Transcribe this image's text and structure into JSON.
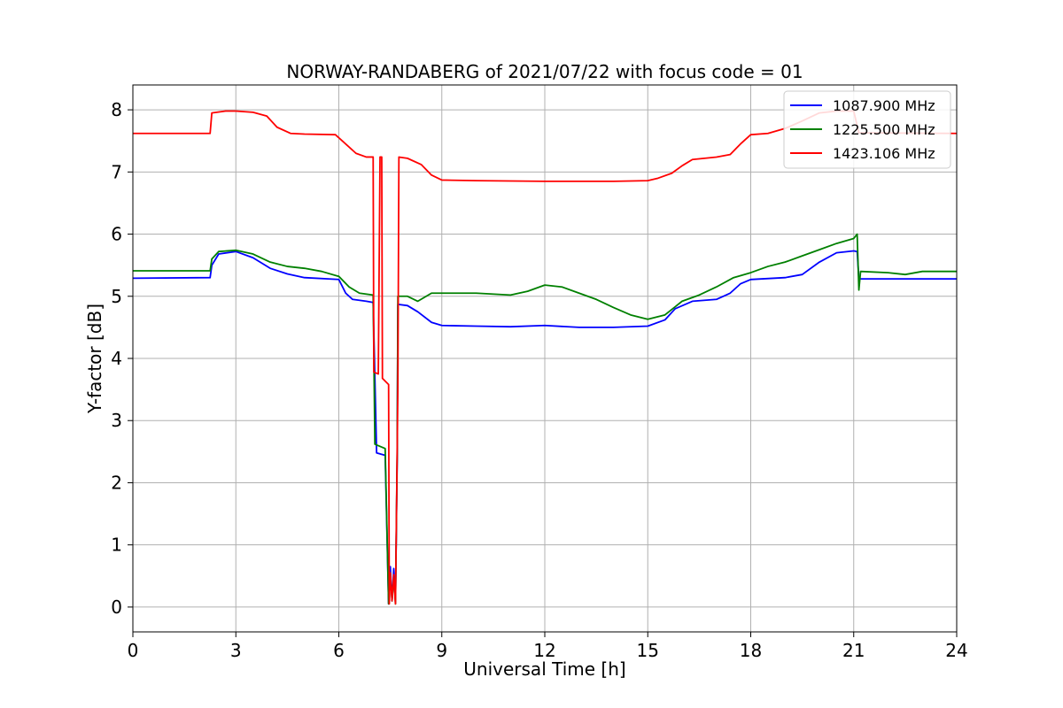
{
  "chart_data": {
    "type": "line",
    "title": "NORWAY-RANDABERG of 2021/07/22 with focus code = 01",
    "xlabel": "Universal Time [h]",
    "ylabel": "Y-factor [dB]",
    "xlim": [
      0,
      24
    ],
    "ylim": [
      -0.4,
      8.4
    ],
    "xticks": [
      0,
      3,
      6,
      9,
      12,
      15,
      18,
      21,
      24
    ],
    "yticks": [
      0,
      1,
      2,
      3,
      4,
      5,
      6,
      7,
      8
    ],
    "grid": true,
    "legend_position": "top-right",
    "series": [
      {
        "name": "1087.900 MHz",
        "color": "#0000ff",
        "points": [
          [
            0,
            5.29
          ],
          [
            2.25,
            5.3
          ],
          [
            2.3,
            5.5
          ],
          [
            2.5,
            5.68
          ],
          [
            3.0,
            5.72
          ],
          [
            3.5,
            5.62
          ],
          [
            4.0,
            5.45
          ],
          [
            4.5,
            5.36
          ],
          [
            5.0,
            5.3
          ],
          [
            6.0,
            5.27
          ],
          [
            6.2,
            5.05
          ],
          [
            6.4,
            4.95
          ],
          [
            6.8,
            4.92
          ],
          [
            7.0,
            4.9
          ],
          [
            7.1,
            2.48
          ],
          [
            7.35,
            2.44
          ],
          [
            7.45,
            0.05
          ],
          [
            7.5,
            0.65
          ],
          [
            7.55,
            0.1
          ],
          [
            7.6,
            0.62
          ],
          [
            7.65,
            0.08
          ],
          [
            7.7,
            2.38
          ],
          [
            7.72,
            4.87
          ],
          [
            8.0,
            4.85
          ],
          [
            8.3,
            4.75
          ],
          [
            8.7,
            4.58
          ],
          [
            9.0,
            4.53
          ],
          [
            10.0,
            4.52
          ],
          [
            11.0,
            4.51
          ],
          [
            12.0,
            4.53
          ],
          [
            13.0,
            4.5
          ],
          [
            14.0,
            4.5
          ],
          [
            15.0,
            4.52
          ],
          [
            15.5,
            4.62
          ],
          [
            15.8,
            4.8
          ],
          [
            16.3,
            4.92
          ],
          [
            17.0,
            4.95
          ],
          [
            17.4,
            5.05
          ],
          [
            17.7,
            5.2
          ],
          [
            18.0,
            5.27
          ],
          [
            19.0,
            5.3
          ],
          [
            19.5,
            5.35
          ],
          [
            20.0,
            5.55
          ],
          [
            20.5,
            5.7
          ],
          [
            21.0,
            5.73
          ],
          [
            21.1,
            5.72
          ],
          [
            21.15,
            5.28
          ],
          [
            24.0,
            5.28
          ]
        ]
      },
      {
        "name": "1225.500 MHz",
        "color": "#008000",
        "points": [
          [
            0,
            5.41
          ],
          [
            2.25,
            5.41
          ],
          [
            2.3,
            5.6
          ],
          [
            2.5,
            5.72
          ],
          [
            3.0,
            5.74
          ],
          [
            3.5,
            5.68
          ],
          [
            4.0,
            5.55
          ],
          [
            4.5,
            5.48
          ],
          [
            5.0,
            5.45
          ],
          [
            5.5,
            5.4
          ],
          [
            6.0,
            5.32
          ],
          [
            6.3,
            5.15
          ],
          [
            6.6,
            5.05
          ],
          [
            7.0,
            5.02
          ],
          [
            7.05,
            2.62
          ],
          [
            7.35,
            2.55
          ],
          [
            7.45,
            0.05
          ],
          [
            7.5,
            0.55
          ],
          [
            7.55,
            0.1
          ],
          [
            7.6,
            0.5
          ],
          [
            7.65,
            0.05
          ],
          [
            7.7,
            2.48
          ],
          [
            7.72,
            5.0
          ],
          [
            8.0,
            5.0
          ],
          [
            8.3,
            4.92
          ],
          [
            8.7,
            5.05
          ],
          [
            9.0,
            5.05
          ],
          [
            10.0,
            5.05
          ],
          [
            11.0,
            5.02
          ],
          [
            11.5,
            5.08
          ],
          [
            12.0,
            5.18
          ],
          [
            12.5,
            5.15
          ],
          [
            13.0,
            5.05
          ],
          [
            13.5,
            4.95
          ],
          [
            14.0,
            4.82
          ],
          [
            14.5,
            4.7
          ],
          [
            15.0,
            4.63
          ],
          [
            15.5,
            4.7
          ],
          [
            16.0,
            4.92
          ],
          [
            16.5,
            5.02
          ],
          [
            17.0,
            5.15
          ],
          [
            17.5,
            5.3
          ],
          [
            18.0,
            5.38
          ],
          [
            18.5,
            5.48
          ],
          [
            19.0,
            5.55
          ],
          [
            19.5,
            5.65
          ],
          [
            20.0,
            5.75
          ],
          [
            20.5,
            5.85
          ],
          [
            21.0,
            5.93
          ],
          [
            21.1,
            6.0
          ],
          [
            21.15,
            5.1
          ],
          [
            21.2,
            5.4
          ],
          [
            22.0,
            5.38
          ],
          [
            22.5,
            5.35
          ],
          [
            23.0,
            5.4
          ],
          [
            24.0,
            5.4
          ]
        ]
      },
      {
        "name": "1423.106 MHz",
        "color": "#ff0000",
        "points": [
          [
            0,
            7.62
          ],
          [
            2.25,
            7.62
          ],
          [
            2.3,
            7.95
          ],
          [
            2.7,
            7.98
          ],
          [
            3.0,
            7.98
          ],
          [
            3.5,
            7.96
          ],
          [
            3.9,
            7.9
          ],
          [
            4.2,
            7.72
          ],
          [
            4.6,
            7.62
          ],
          [
            5.0,
            7.61
          ],
          [
            5.9,
            7.6
          ],
          [
            6.2,
            7.45
          ],
          [
            6.5,
            7.3
          ],
          [
            6.8,
            7.24
          ],
          [
            7.0,
            7.24
          ],
          [
            7.02,
            3.78
          ],
          [
            7.15,
            3.75
          ],
          [
            7.2,
            7.24
          ],
          [
            7.25,
            7.24
          ],
          [
            7.27,
            3.68
          ],
          [
            7.45,
            3.58
          ],
          [
            7.47,
            0.05
          ],
          [
            7.5,
            0.55
          ],
          [
            7.55,
            0.1
          ],
          [
            7.6,
            0.52
          ],
          [
            7.65,
            0.05
          ],
          [
            7.72,
            3.52
          ],
          [
            7.75,
            7.24
          ],
          [
            8.0,
            7.22
          ],
          [
            8.4,
            7.12
          ],
          [
            8.7,
            6.95
          ],
          [
            9.0,
            6.87
          ],
          [
            10.0,
            6.86
          ],
          [
            12.0,
            6.85
          ],
          [
            14.0,
            6.85
          ],
          [
            15.0,
            6.86
          ],
          [
            15.3,
            6.9
          ],
          [
            15.7,
            6.98
          ],
          [
            16.0,
            7.1
          ],
          [
            16.3,
            7.2
          ],
          [
            17.0,
            7.24
          ],
          [
            17.4,
            7.28
          ],
          [
            17.7,
            7.45
          ],
          [
            18.0,
            7.6
          ],
          [
            18.5,
            7.62
          ],
          [
            19.0,
            7.7
          ],
          [
            19.5,
            7.82
          ],
          [
            20.0,
            7.95
          ],
          [
            20.5,
            7.98
          ],
          [
            21.0,
            7.98
          ],
          [
            21.15,
            7.63
          ],
          [
            24.0,
            7.62
          ]
        ]
      }
    ]
  }
}
